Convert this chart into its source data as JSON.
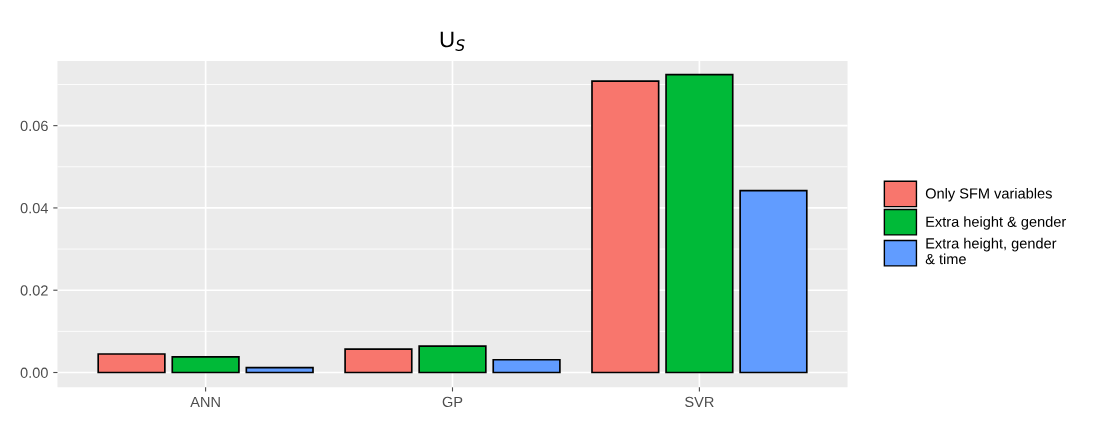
{
  "chart_data": {
    "type": "bar",
    "title": "U$_{S}$",
    "categories": [
      "ANN",
      "GP",
      "SVR"
    ],
    "series": [
      {
        "name": "Only SFM variables",
        "color": "#f8766d",
        "values": [
          0.0045,
          0.0057,
          0.0708
        ]
      },
      {
        "name": "Extra height & gender",
        "color": "#00ba38",
        "values": [
          0.0038,
          0.0064,
          0.0724
        ]
      },
      {
        "name": "Extra height, gender\n& time",
        "color": "#619cff",
        "values": [
          0.0012,
          0.0031,
          0.0442
        ]
      }
    ],
    "ylim": [
      -0.0036,
      0.0757
    ],
    "yticks": [
      {
        "value": 0,
        "label": "0.00"
      },
      {
        "value": 0.02,
        "label": "0.02"
      },
      {
        "value": 0.04,
        "label": "0.04"
      },
      {
        "value": 0.06,
        "label": "0.06"
      }
    ],
    "grid": true,
    "legend": "right"
  }
}
